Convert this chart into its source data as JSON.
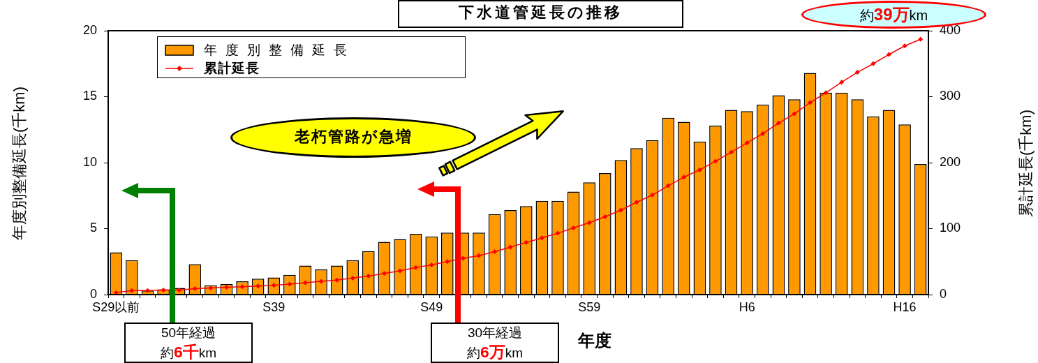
{
  "chart_data": {
    "type": "bar",
    "title": "下水道管延長の推移",
    "xlabel": "年度",
    "ylabel": "年度別整備延長(千km)",
    "y2label": "累計延長(千km)",
    "categories": [
      "S29以前",
      null,
      null,
      null,
      null,
      null,
      null,
      null,
      null,
      null,
      "S39",
      null,
      null,
      null,
      null,
      null,
      null,
      null,
      null,
      null,
      "S49",
      null,
      null,
      null,
      null,
      null,
      null,
      null,
      null,
      null,
      "S59",
      null,
      null,
      null,
      null,
      null,
      null,
      null,
      null,
      null,
      "H6",
      null,
      null,
      null,
      null,
      null,
      null,
      null,
      null,
      null,
      "H16",
      null
    ],
    "series": [
      {
        "name": "年度別整備延長",
        "color": "#ff9900",
        "values": [
          3.2,
          2.6,
          0.3,
          0.4,
          0.5,
          2.3,
          0.7,
          0.8,
          1.0,
          1.2,
          1.3,
          1.5,
          2.2,
          1.9,
          2.2,
          2.6,
          3.3,
          4.0,
          4.2,
          4.6,
          4.4,
          4.7,
          4.7,
          4.7,
          6.1,
          6.4,
          6.7,
          7.1,
          7.1,
          7.8,
          8.5,
          9.2,
          10.2,
          11.1,
          11.7,
          13.4,
          13.1,
          11.6,
          12.8,
          14.0,
          13.9,
          14.4,
          15.1,
          14.8,
          16.8,
          15.3,
          15.3,
          14.8,
          13.5,
          14.0,
          12.9,
          9.9
        ]
      },
      {
        "name": "累計延長",
        "type": "line",
        "axis": "y2",
        "color": "#ff0000",
        "values": [
          3,
          6,
          6,
          7,
          7,
          9,
          10,
          11,
          12,
          13,
          14,
          16,
          18,
          20,
          22,
          25,
          28,
          32,
          36,
          41,
          45,
          50,
          55,
          59,
          65,
          72,
          79,
          86,
          93,
          101,
          109,
          118,
          128,
          140,
          151,
          165,
          178,
          189,
          202,
          216,
          230,
          244,
          260,
          274,
          291,
          306,
          322,
          337,
          350,
          364,
          377,
          387
        ]
      }
    ],
    "ylim": [
      0,
      20
    ],
    "yticks": [
      0,
      5,
      10,
      15,
      20
    ],
    "y2lim": [
      0,
      400
    ],
    "y2ticks": [
      0,
      100,
      200,
      300,
      400
    ],
    "marker": "diamond",
    "legend": "top left",
    "grid": false,
    "annotations": [
      "老朽管路が急増",
      "50年経過",
      "約6千km",
      "30年経過",
      "約6万km",
      "約39万km"
    ]
  }
}
